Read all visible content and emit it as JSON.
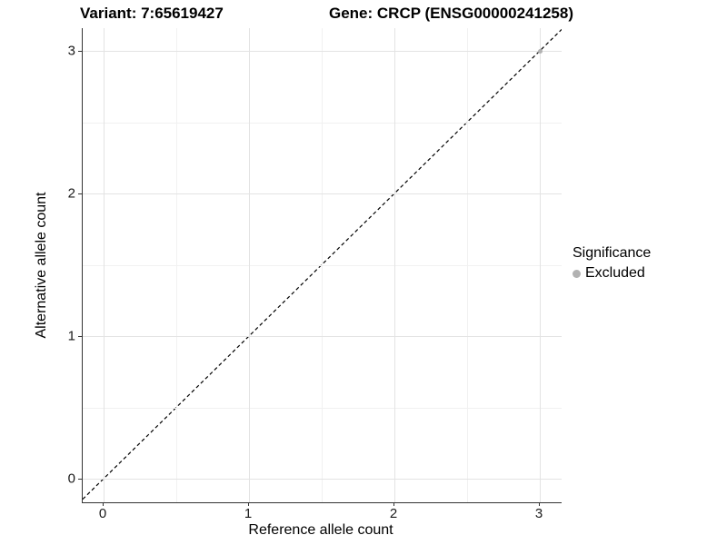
{
  "chart_data": {
    "type": "scatter",
    "title_left": "Variant: 7:65619427",
    "title_right": "Gene: CRCP (ENSG00000241258)",
    "xlabel": "Reference allele count",
    "ylabel": "Alternative allele count",
    "x_ticks": [
      0,
      1,
      2,
      3
    ],
    "y_ticks": [
      0,
      1,
      2,
      3
    ],
    "x_minor_ticks": [
      0.5,
      1.5,
      2.5
    ],
    "y_minor_ticks": [
      0.5,
      1.5,
      2.5
    ],
    "xlim": [
      -0.14,
      3.15
    ],
    "ylim": [
      -0.17,
      3.16
    ],
    "grid": true,
    "legend": {
      "title": "Significance",
      "position": "right",
      "items": [
        {
          "label": "Excluded",
          "color": "#b2b2b2"
        }
      ]
    },
    "points": [
      {
        "x": 3,
        "y": 3,
        "series": "Excluded"
      }
    ],
    "identity_line": {
      "slope": 1,
      "intercept": 0,
      "style": "dashed",
      "color": "#000000"
    }
  },
  "colors": {
    "background": "#ffffff",
    "axis": "#333333",
    "grid_major": "#e3e3e3",
    "grid_minor": "#f1f1f1",
    "point": "#b2b2b2",
    "text": "#000000"
  }
}
